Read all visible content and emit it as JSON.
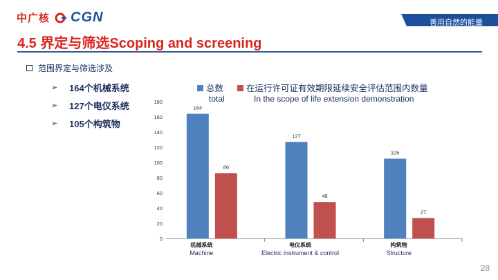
{
  "header": {
    "logo_cn": "中广核",
    "logo_en": "CGN",
    "slogan": "善用自然的能量"
  },
  "title": "4.5 界定与筛选Scoping and screening",
  "scope": {
    "label": "范围界定与筛选涉及",
    "items": [
      "164个机械系统",
      "127个电仪系统",
      "105个构筑物"
    ]
  },
  "page_number": "28",
  "colors": {
    "brand_red": "#d9261c",
    "brand_blue": "#1d4f9c",
    "series_blue": "#4f81bd",
    "series_red": "#c0504d"
  },
  "chart_data": {
    "type": "bar",
    "categories": [
      {
        "cn": "机械系统",
        "en": "Machine"
      },
      {
        "cn": "电仪系统",
        "en": "Electric instrument & control"
      },
      {
        "cn": "构筑物",
        "en": "Structure"
      }
    ],
    "series": [
      {
        "name": "总数",
        "name_en": "total",
        "color": "#4f81bd",
        "values": [
          164,
          127,
          105
        ]
      },
      {
        "name": "在运行许可证有效期限延续安全评估范围内数量",
        "name_en": "In the scope of life extension demonstration",
        "color": "#c0504d",
        "values": [
          86,
          48,
          27
        ]
      }
    ],
    "ylim": [
      0,
      180
    ],
    "yticks": [
      0,
      20,
      40,
      60,
      80,
      100,
      120,
      140,
      160,
      180
    ],
    "grid": false,
    "legend_position": "top"
  }
}
